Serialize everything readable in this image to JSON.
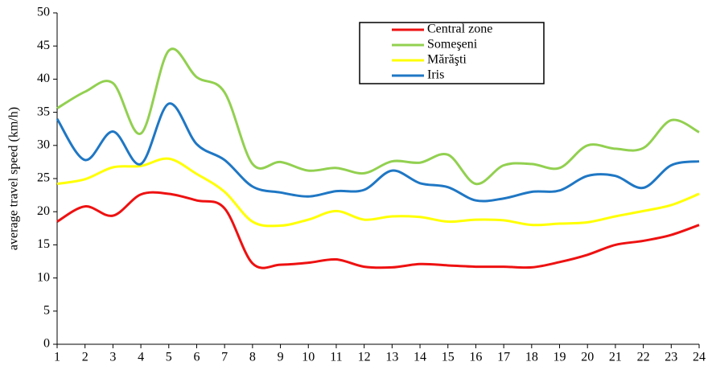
{
  "chart_data": {
    "type": "line",
    "y_label": "average travel speed (km/h)",
    "x": [
      1,
      2,
      3,
      4,
      5,
      6,
      7,
      8,
      9,
      10,
      11,
      12,
      13,
      14,
      15,
      16,
      17,
      18,
      19,
      20,
      21,
      22,
      23,
      24
    ],
    "xlim": [
      1,
      24
    ],
    "xticks": [
      1,
      2,
      3,
      4,
      5,
      6,
      7,
      8,
      9,
      10,
      11,
      12,
      13,
      14,
      15,
      16,
      17,
      18,
      19,
      20,
      21,
      22,
      23,
      24
    ],
    "ylim": [
      0,
      50
    ],
    "yticks": [
      0,
      5,
      10,
      15,
      20,
      25,
      30,
      35,
      40,
      45,
      50
    ],
    "grid": false,
    "smooth": true,
    "legend": "upper right",
    "series": [
      {
        "name": "Central zone",
        "color": "#ee1111",
        "values": [
          18.5,
          20.8,
          19.4,
          22.6,
          22.7,
          21.7,
          20.5,
          12.2,
          12.0,
          12.3,
          12.8,
          11.7,
          11.6,
          12.1,
          11.9,
          11.7,
          11.7,
          11.6,
          12.4,
          13.5,
          15.0,
          15.6,
          16.5,
          18.0
        ]
      },
      {
        "name": "Someşeni",
        "color": "#92d050",
        "values": [
          35.6,
          38.1,
          39.4,
          31.8,
          44.3,
          40.3,
          38.0,
          27.2,
          27.5,
          26.2,
          26.6,
          25.8,
          27.6,
          27.4,
          28.6,
          24.2,
          27.0,
          27.2,
          26.6,
          30.0,
          29.5,
          29.6,
          33.8,
          32.0
        ]
      },
      {
        "name": "Mărăşti",
        "color": "#ffff00",
        "values": [
          24.2,
          24.9,
          26.7,
          26.9,
          28.0,
          25.7,
          23.0,
          18.5,
          17.9,
          18.8,
          20.1,
          18.8,
          19.3,
          19.2,
          18.5,
          18.8,
          18.7,
          18.0,
          18.2,
          18.4,
          19.3,
          20.1,
          21.0,
          22.7
        ]
      },
      {
        "name": "Iris",
        "color": "#1f77c4",
        "values": [
          34.0,
          27.8,
          32.1,
          27.2,
          36.3,
          30.2,
          27.8,
          23.8,
          22.9,
          22.3,
          23.1,
          23.3,
          26.2,
          24.3,
          23.7,
          21.7,
          22.0,
          23.0,
          23.2,
          25.4,
          25.4,
          23.6,
          27.0,
          27.6
        ]
      }
    ]
  }
}
